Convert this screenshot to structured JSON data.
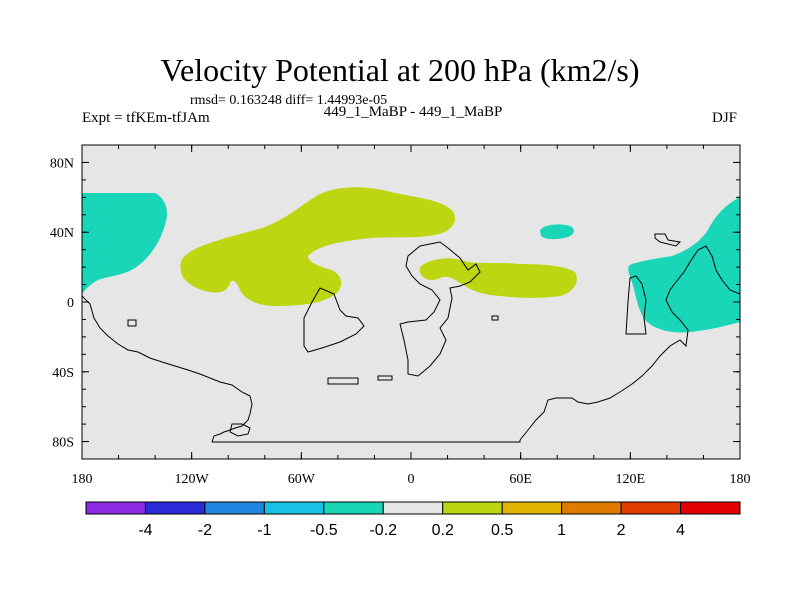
{
  "title": "Velocity Potential at 200 hPa (km2/s)",
  "stats": "rmsd= 0.163248  diff= 1.44993e-05",
  "left_subtitle": "Expt = tfKEm-tfJAm",
  "center_subtitle": "449_1_MaBP - 449_1_MaBP",
  "right_subtitle": "DJF",
  "map": {
    "projection": "cylindrical equidistant",
    "lon_range": [
      -180,
      180
    ],
    "lat_range": [
      -90,
      90
    ],
    "background_color": "#e6e6e6",
    "lat_ticks": [
      {
        "value": 80,
        "label": "80N"
      },
      {
        "value": 40,
        "label": "40N"
      },
      {
        "value": 0,
        "label": "0"
      },
      {
        "value": -40,
        "label": "40S"
      },
      {
        "value": -80,
        "label": "80S"
      }
    ],
    "lon_ticks": [
      {
        "value": -180,
        "label": "180"
      },
      {
        "value": -120,
        "label": "120W"
      },
      {
        "value": -60,
        "label": "60W"
      },
      {
        "value": 0,
        "label": "0"
      },
      {
        "value": 60,
        "label": "60E"
      },
      {
        "value": 120,
        "label": "120E"
      },
      {
        "value": 180,
        "label": "180"
      }
    ]
  },
  "colorbar": {
    "colors": [
      "#8a2be2",
      "#2a2ad8",
      "#1f86df",
      "#19c0e8",
      "#19d6b8",
      "#e6e6e6",
      "#bcd612",
      "#e0b400",
      "#e07a00",
      "#e03c00",
      "#e00000"
    ],
    "labels": [
      "-4",
      "-2",
      "-1",
      "-0.5",
      "-0.2",
      "0.2",
      "0.5",
      "1",
      "2",
      "4"
    ]
  },
  "colors": {
    "positive_0_2_to_0_5": "#bcd612",
    "negative_0_5_to_0_2": "#19d6b8"
  }
}
